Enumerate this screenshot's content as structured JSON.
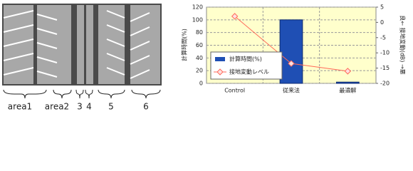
{
  "diagram": {
    "labels": [
      "area1",
      "area2",
      "3",
      "4",
      "5",
      "6"
    ]
  },
  "chart_data": {
    "type": "bar-line",
    "categories": [
      "Control",
      "従来法",
      "最適解"
    ],
    "series": [
      {
        "name": "計算時間(%)",
        "type": "bar",
        "color": "#1f4fb4",
        "values": [
          0,
          100,
          2
        ]
      },
      {
        "name": "接地変動レベル",
        "type": "line",
        "axis": "y2",
        "color": "#ff6a5a",
        "values": [
          2,
          -13.5,
          -16
        ]
      }
    ],
    "ylabel": "計算時間(%)",
    "y2label": "良← 接地変動(dB) →悪",
    "ylim": [
      0,
      120
    ],
    "yticks": [
      0,
      20,
      40,
      60,
      80,
      100,
      120
    ],
    "y2lim": [
      -20,
      5
    ],
    "y2ticks": [
      -20,
      -15,
      -10,
      -5,
      0,
      5
    ],
    "grid": true,
    "legend": "lower left"
  }
}
